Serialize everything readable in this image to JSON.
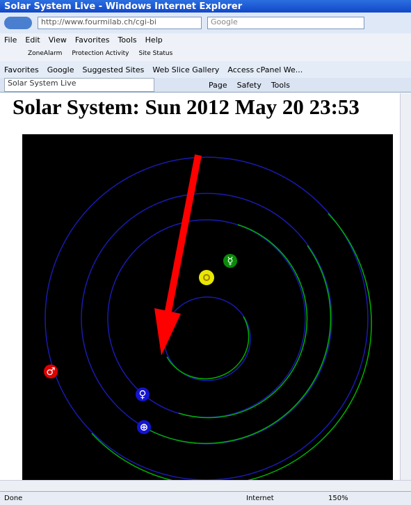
{
  "window": {
    "title": "Solar System Live - Windows Internet Explorer"
  },
  "address_bar": {
    "url": "http://www.fourmilab.ch/cgi-bi",
    "search": "Google"
  },
  "menu": [
    "File",
    "Edit",
    "View",
    "Favorites",
    "Tools",
    "Help"
  ],
  "zonealarm_toolbar": [
    "ZoneAlarm",
    "Protection Activity",
    "Site Status"
  ],
  "favorites_bar": [
    "Favorites",
    "Google",
    "Suggested Sites",
    "Web Slice Gallery",
    "Access cPanel We..."
  ],
  "tab": "Solar System Live",
  "command_bar": [
    "Page",
    "Safety",
    "Tools"
  ],
  "page": {
    "heading": "Solar System: Sun 2012 May 20 23:53",
    "planets": [
      {
        "symbol": "☿"
      },
      {
        "symbol": "♀"
      },
      {
        "symbol": "⊕"
      },
      {
        "symbol": "♂"
      }
    ]
  },
  "status_bar": {
    "status": "Done",
    "zone": "Internet",
    "zoom": "150%"
  }
}
